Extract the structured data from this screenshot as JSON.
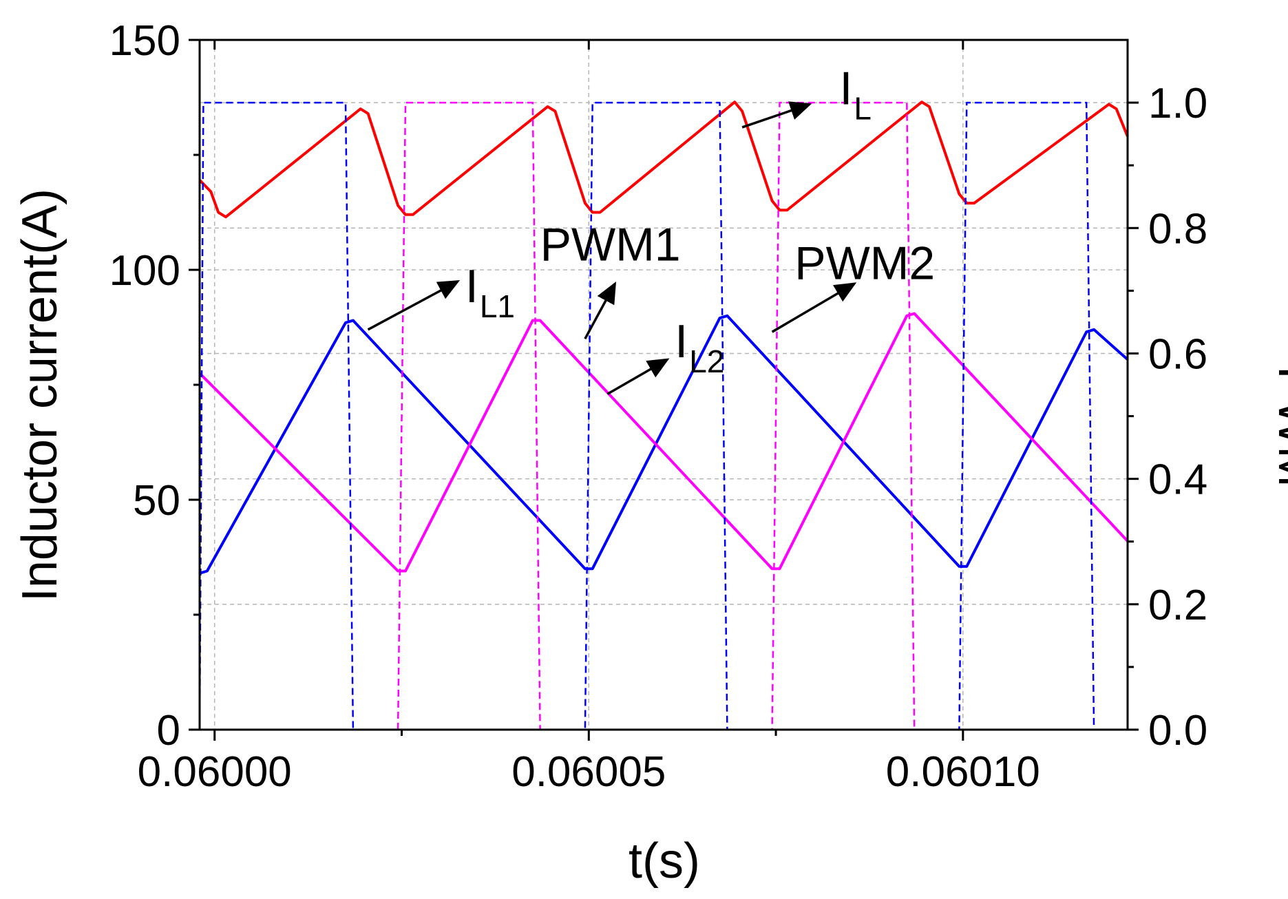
{
  "chart_data": {
    "type": "line",
    "xlabel": "t(s)",
    "ylabel": "Inductor current(A)",
    "y2label": "PWM",
    "xlim": [
      0.059998,
      0.060122
    ],
    "ylim": [
      0,
      150
    ],
    "y2lim": [
      0.0,
      1.1
    ],
    "x_ticks": [
      0.06,
      0.06005,
      0.0601
    ],
    "x_tick_labels": [
      "0.06000",
      "0.06005",
      "0.06010"
    ],
    "y_ticks": [
      0,
      50,
      100,
      150
    ],
    "y_tick_labels": [
      "0",
      "50",
      "100",
      "150"
    ],
    "y2_ticks": [
      0.0,
      0.2,
      0.4,
      0.6,
      0.8,
      1.0
    ],
    "y2_tick_labels": [
      "0.0",
      "0.2",
      "0.4",
      "0.6",
      "0.8",
      "1.0"
    ],
    "grid": true,
    "series": [
      {
        "name": "IL",
        "axis": "left",
        "color": "#ff0000",
        "style": "solid",
        "x": [
          0.059998,
          0.0599995,
          0.0600005,
          0.0600015,
          0.0600195,
          0.0600205,
          0.0600245,
          0.0600255,
          0.0600265,
          0.0600445,
          0.0600455,
          0.0600495,
          0.0600505,
          0.0600515,
          0.0600695,
          0.0600705,
          0.0600745,
          0.0600755,
          0.0600765,
          0.0600945,
          0.0600955,
          0.0600995,
          0.0601005,
          0.0601015,
          0.0601195,
          0.0601205,
          0.060122
        ],
        "values": [
          119.5,
          117,
          112.5,
          111.5,
          135,
          134,
          114,
          112,
          112,
          135.5,
          134.5,
          114.5,
          112.5,
          112.5,
          136.5,
          134.5,
          115,
          113,
          113,
          136.5,
          135.5,
          116.5,
          114.5,
          114.5,
          136,
          135,
          129
        ]
      },
      {
        "name": "IL1",
        "axis": "left",
        "color": "#0000ff",
        "style": "solid",
        "x": [
          0.059998,
          0.059999,
          0.0600175,
          0.0600185,
          0.0600495,
          0.0600505,
          0.0600675,
          0.0600685,
          0.0600995,
          0.0601005,
          0.0601165,
          0.0601175,
          0.060122
        ],
        "values": [
          34,
          34.5,
          88.5,
          89,
          35,
          35,
          89.5,
          90,
          35.5,
          35.5,
          86.5,
          87,
          80.5
        ]
      },
      {
        "name": "IL2",
        "axis": "left",
        "color": "#ff00ff",
        "style": "solid",
        "x": [
          0.059998,
          0.0600245,
          0.0600255,
          0.0600425,
          0.0600435,
          0.0600745,
          0.0600755,
          0.0600925,
          0.0600935,
          0.060122
        ],
        "values": [
          77.5,
          34.5,
          34.5,
          89,
          89,
          35,
          35,
          90,
          90.5,
          41
        ]
      },
      {
        "name": "PWM1",
        "axis": "right",
        "color": "#0000ff",
        "style": "dashed",
        "x": [
          0.059998,
          0.0599985,
          0.0599985,
          0.0600175,
          0.0600185,
          0.0600495,
          0.0600505,
          0.0600675,
          0.0600685,
          0.0600995,
          0.0601005,
          0.0601165,
          0.0601175
        ],
        "values": [
          0,
          1,
          1,
          1,
          0,
          0,
          1,
          1,
          0,
          0,
          1,
          1,
          0
        ]
      },
      {
        "name": "PWM2",
        "axis": "right",
        "color": "#ff00ff",
        "style": "dashed",
        "x": [
          0.0600245,
          0.0600255,
          0.0600425,
          0.0600435,
          0.0600745,
          0.0600755,
          0.0600925,
          0.0600935
        ],
        "values": [
          0,
          1,
          1,
          0,
          0,
          1,
          1,
          0
        ]
      }
    ],
    "annotations": [
      {
        "main": "I",
        "sub": "L",
        "x": 0.0600835,
        "y": 136
      },
      {
        "main": "I",
        "sub": "L1",
        "x": 0.0600335,
        "y": 93
      },
      {
        "main": "PWM1",
        "sub": "",
        "x": 0.0600435,
        "y": 102
      },
      {
        "main": "I",
        "sub": "L2",
        "x": 0.0600615,
        "y": 81
      },
      {
        "main": "PWM2",
        "sub": "",
        "x": 0.0600775,
        "y": 98
      }
    ],
    "arrows": [
      {
        "from": [
          0.0600705,
          131
        ],
        "to": [
          0.0600795,
          136
        ]
      },
      {
        "from": [
          0.0600205,
          87
        ],
        "to": [
          0.0600325,
          97.5
        ]
      },
      {
        "from": [
          0.0600495,
          85
        ],
        "to": [
          0.0600535,
          97
        ]
      },
      {
        "from": [
          0.0600525,
          73
        ],
        "to": [
          0.0600605,
          80.5
        ]
      },
      {
        "from": [
          0.0600745,
          86.5
        ],
        "to": [
          0.0600855,
          97
        ]
      }
    ]
  }
}
